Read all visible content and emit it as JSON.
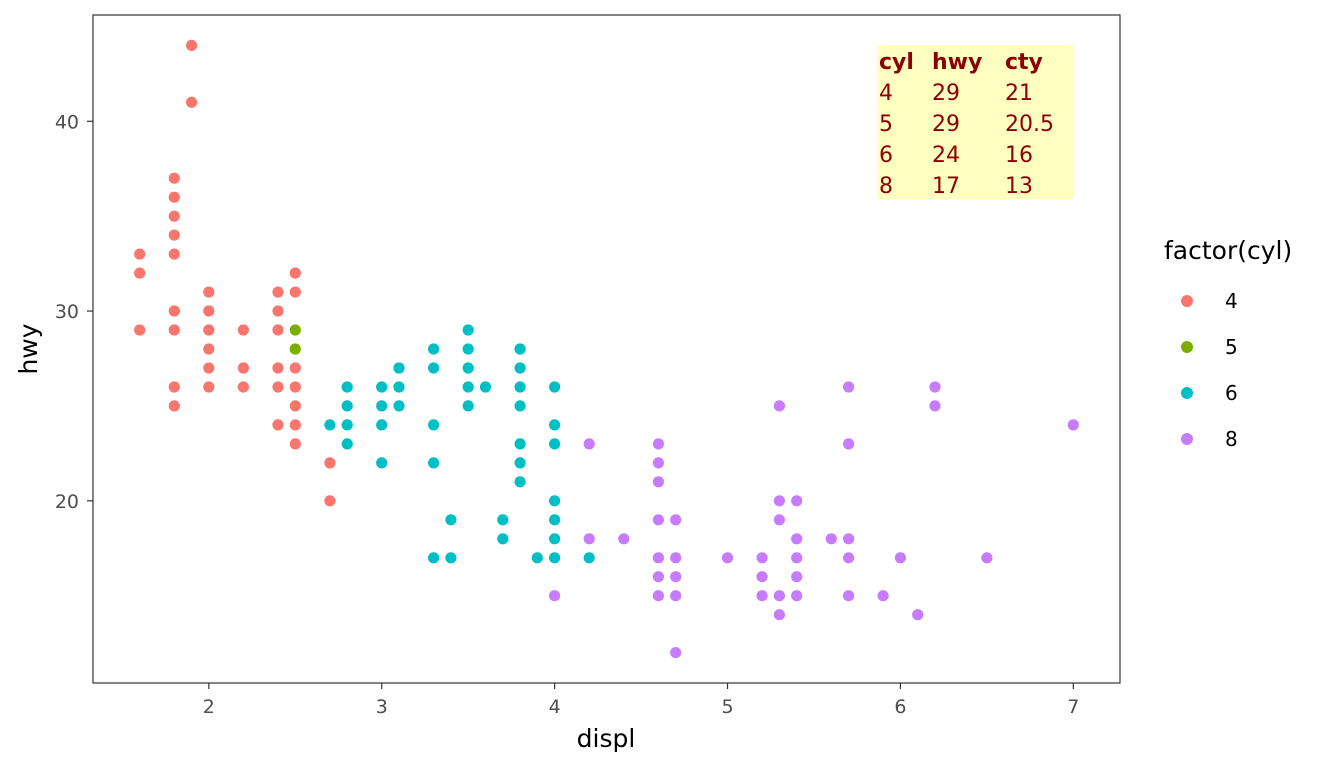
{
  "chart_data": {
    "type": "scatter",
    "xlabel": "displ",
    "ylabel": "hwy",
    "xlim": [
      1.33,
      7.27
    ],
    "ylim": [
      10.4,
      45.6
    ],
    "xticks": [
      2,
      3,
      4,
      5,
      6,
      7
    ],
    "yticks": [
      20,
      30,
      40
    ],
    "grid": false,
    "legend": {
      "title": "factor(cyl)",
      "position": "right",
      "entries": [
        {
          "label": "4",
          "color": "#F8766D"
        },
        {
          "label": "5",
          "color": "#7CAE00"
        },
        {
          "label": "6",
          "color": "#00BFC4"
        },
        {
          "label": "8",
          "color": "#C77CFF"
        }
      ]
    },
    "series": [
      {
        "name": "4",
        "color": "#F8766D",
        "points": [
          [
            1.6,
            33
          ],
          [
            1.6,
            32
          ],
          [
            1.6,
            29
          ],
          [
            1.8,
            37
          ],
          [
            1.8,
            36
          ],
          [
            1.8,
            35
          ],
          [
            1.8,
            34
          ],
          [
            1.8,
            33
          ],
          [
            1.8,
            30
          ],
          [
            1.8,
            29
          ],
          [
            1.8,
            26
          ],
          [
            1.8,
            25
          ],
          [
            1.9,
            44
          ],
          [
            1.9,
            41
          ],
          [
            2.0,
            31
          ],
          [
            2.0,
            30
          ],
          [
            2.0,
            29
          ],
          [
            2.0,
            28
          ],
          [
            2.0,
            27
          ],
          [
            2.0,
            26
          ],
          [
            2.2,
            29
          ],
          [
            2.2,
            27
          ],
          [
            2.2,
            26
          ],
          [
            2.4,
            31
          ],
          [
            2.4,
            30
          ],
          [
            2.4,
            29
          ],
          [
            2.4,
            27
          ],
          [
            2.4,
            26
          ],
          [
            2.4,
            24
          ],
          [
            2.5,
            32
          ],
          [
            2.5,
            31
          ],
          [
            2.5,
            27
          ],
          [
            2.5,
            26
          ],
          [
            2.5,
            25
          ],
          [
            2.5,
            24
          ],
          [
            2.5,
            23
          ],
          [
            2.7,
            22
          ],
          [
            2.7,
            20
          ]
        ]
      },
      {
        "name": "5",
        "color": "#7CAE00",
        "points": [
          [
            2.5,
            29
          ],
          [
            2.5,
            28
          ]
        ]
      },
      {
        "name": "6",
        "color": "#00BFC4",
        "points": [
          [
            2.7,
            24
          ],
          [
            2.8,
            26
          ],
          [
            2.8,
            25
          ],
          [
            2.8,
            24
          ],
          [
            2.8,
            23
          ],
          [
            3.0,
            26
          ],
          [
            3.0,
            25
          ],
          [
            3.0,
            24
          ],
          [
            3.0,
            22
          ],
          [
            3.1,
            27
          ],
          [
            3.1,
            26
          ],
          [
            3.1,
            25
          ],
          [
            3.3,
            28
          ],
          [
            3.3,
            27
          ],
          [
            3.3,
            24
          ],
          [
            3.3,
            22
          ],
          [
            3.3,
            17
          ],
          [
            3.4,
            19
          ],
          [
            3.4,
            17
          ],
          [
            3.5,
            29
          ],
          [
            3.5,
            28
          ],
          [
            3.5,
            27
          ],
          [
            3.5,
            26
          ],
          [
            3.5,
            25
          ],
          [
            3.6,
            26
          ],
          [
            3.7,
            19
          ],
          [
            3.7,
            18
          ],
          [
            3.8,
            28
          ],
          [
            3.8,
            27
          ],
          [
            3.8,
            26
          ],
          [
            3.8,
            25
          ],
          [
            3.8,
            23
          ],
          [
            3.8,
            22
          ],
          [
            3.8,
            21
          ],
          [
            3.9,
            17
          ],
          [
            4.0,
            26
          ],
          [
            4.0,
            24
          ],
          [
            4.0,
            23
          ],
          [
            4.0,
            20
          ],
          [
            4.0,
            19
          ],
          [
            4.0,
            18
          ],
          [
            4.0,
            17
          ],
          [
            4.2,
            17
          ]
        ]
      },
      {
        "name": "8",
        "color": "#C77CFF",
        "points": [
          [
            4.0,
            15
          ],
          [
            4.2,
            23
          ],
          [
            4.2,
            18
          ],
          [
            4.4,
            18
          ],
          [
            4.6,
            23
          ],
          [
            4.6,
            22
          ],
          [
            4.6,
            21
          ],
          [
            4.6,
            19
          ],
          [
            4.6,
            17
          ],
          [
            4.6,
            16
          ],
          [
            4.6,
            15
          ],
          [
            4.7,
            19
          ],
          [
            4.7,
            17
          ],
          [
            4.7,
            16
          ],
          [
            4.7,
            15
          ],
          [
            4.7,
            12
          ],
          [
            5.0,
            17
          ],
          [
            5.2,
            17
          ],
          [
            5.2,
            16
          ],
          [
            5.2,
            15
          ],
          [
            5.3,
            25
          ],
          [
            5.3,
            20
          ],
          [
            5.3,
            19
          ],
          [
            5.3,
            15
          ],
          [
            5.3,
            14
          ],
          [
            5.4,
            20
          ],
          [
            5.4,
            18
          ],
          [
            5.4,
            17
          ],
          [
            5.4,
            16
          ],
          [
            5.4,
            15
          ],
          [
            5.6,
            18
          ],
          [
            5.7,
            26
          ],
          [
            5.7,
            23
          ],
          [
            5.7,
            18
          ],
          [
            5.7,
            17
          ],
          [
            5.7,
            15
          ],
          [
            5.9,
            15
          ],
          [
            6.0,
            17
          ],
          [
            6.1,
            14
          ],
          [
            6.2,
            26
          ],
          [
            6.2,
            25
          ],
          [
            6.5,
            17
          ],
          [
            7.0,
            24
          ]
        ]
      }
    ],
    "annotation": {
      "type": "table",
      "background": "#FFFFC0",
      "text_color": "#8B0000",
      "anchor": "top-right",
      "columns": [
        "cyl",
        "hwy",
        "cty"
      ],
      "rows": [
        [
          "4",
          "29",
          "21"
        ],
        [
          "5",
          "29",
          "20.5"
        ],
        [
          "6",
          "24",
          "16"
        ],
        [
          "8",
          "17",
          "13"
        ]
      ]
    }
  }
}
